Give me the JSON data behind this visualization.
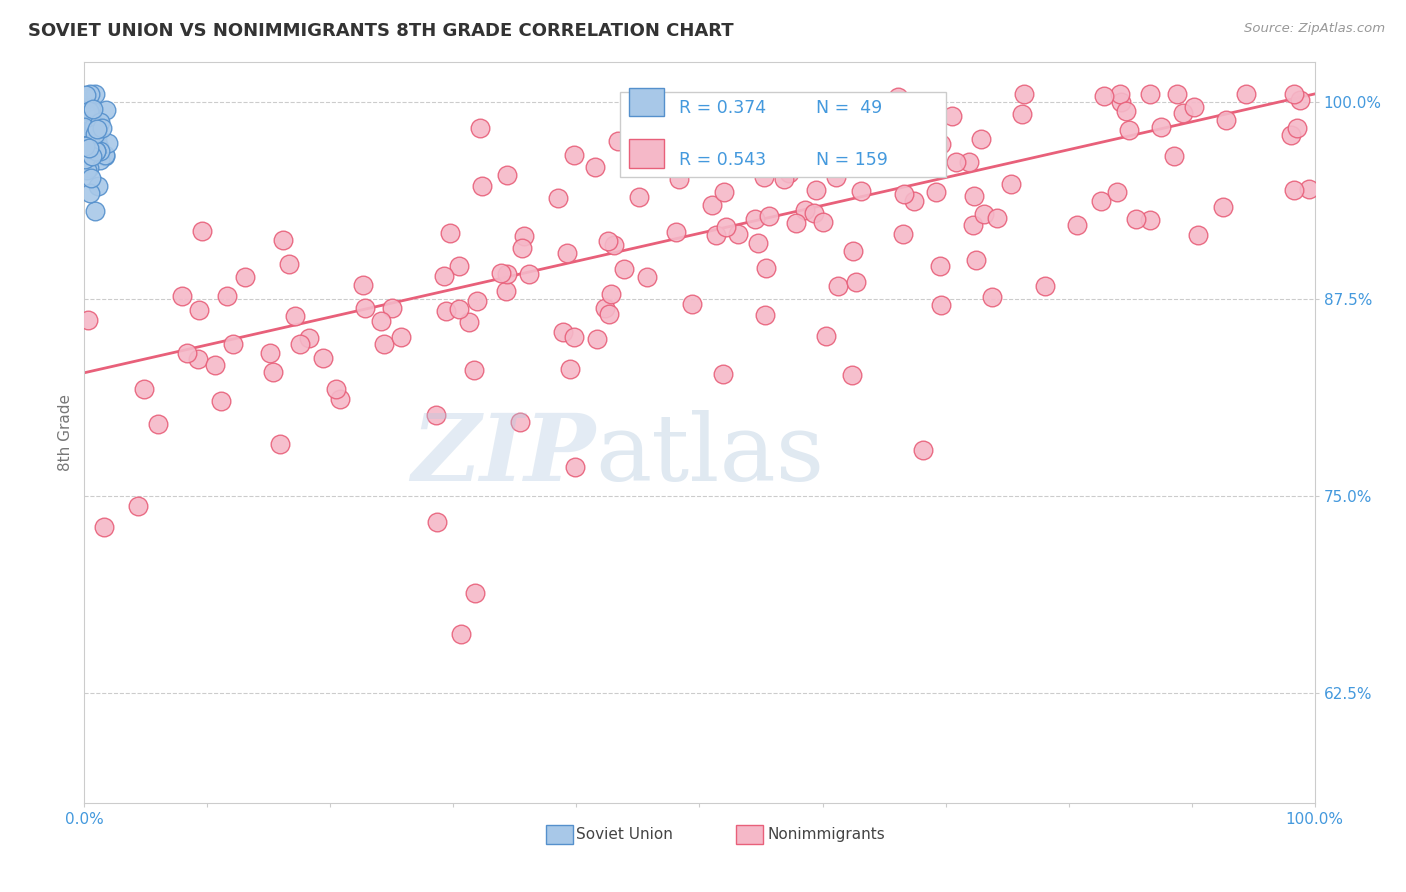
{
  "title": "SOVIET UNION VS NONIMMIGRANTS 8TH GRADE CORRELATION CHART",
  "source_text": "Source: ZipAtlas.com",
  "ylabel": "8th Grade",
  "xlim": [
    0,
    1
  ],
  "ylim": [
    0.555,
    1.025
  ],
  "yticks": [
    0.625,
    0.75,
    0.875,
    1.0
  ],
  "ytick_labels": [
    "62.5%",
    "75.0%",
    "87.5%",
    "100.0%"
  ],
  "xticks": [
    0.0,
    0.1,
    0.2,
    0.3,
    0.4,
    0.5,
    0.6,
    0.7,
    0.8,
    0.9,
    1.0
  ],
  "xtick_labels": [
    "0.0%",
    "",
    "",
    "",
    "",
    "",
    "",
    "",
    "",
    "",
    "100.0%"
  ],
  "blue_color": "#A8C8E8",
  "blue_edge": "#5590CC",
  "pink_color": "#F5B8C8",
  "pink_edge": "#E8607A",
  "trend_color": "#E8607A",
  "legend_r_blue": "R = 0.374",
  "legend_n_blue": "N =  49",
  "legend_r_pink": "R = 0.543",
  "legend_n_pink": "N = 159",
  "blue_label": "Soviet Union",
  "pink_label": "Nonimmigrants",
  "watermark_zip": "ZIP",
  "watermark_atlas": "atlas",
  "trend_x0": 0.0,
  "trend_y0": 0.828,
  "trend_x1": 1.0,
  "trend_y1": 1.005,
  "background_color": "#FFFFFF",
  "grid_color": "#CCCCCC",
  "title_color": "#333333",
  "axis_label_color": "#777777",
  "tick_label_color": "#4499DD",
  "legend_text_color": "#4499DD",
  "source_color": "#999999"
}
